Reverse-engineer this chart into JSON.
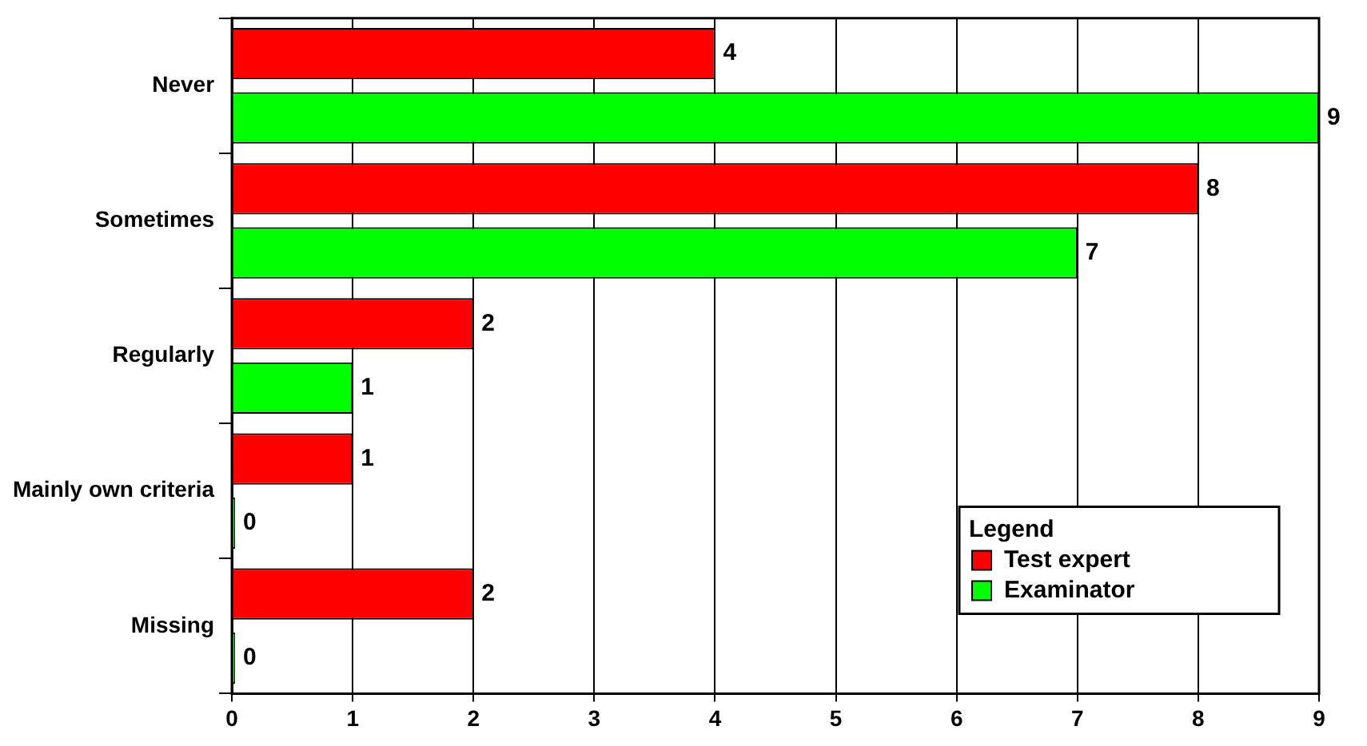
{
  "chart_data": {
    "type": "bar",
    "orientation": "horizontal",
    "categories": [
      "Never",
      "Sometimes",
      "Regularly",
      "Mainly own criteria",
      "Missing"
    ],
    "series": [
      {
        "name": "Test expert",
        "color": "#ff0000",
        "values": [
          4,
          8,
          2,
          1,
          2
        ]
      },
      {
        "name": "Examinator",
        "color": "#00ff00",
        "values": [
          9,
          7,
          1,
          0,
          0
        ]
      }
    ],
    "xlim": [
      0,
      9
    ],
    "xticks": [
      0,
      1,
      2,
      3,
      4,
      5,
      6,
      7,
      8,
      9
    ],
    "grid": "x",
    "legend": "bottom right",
    "legend_title": "Legend",
    "data_labels": true
  }
}
